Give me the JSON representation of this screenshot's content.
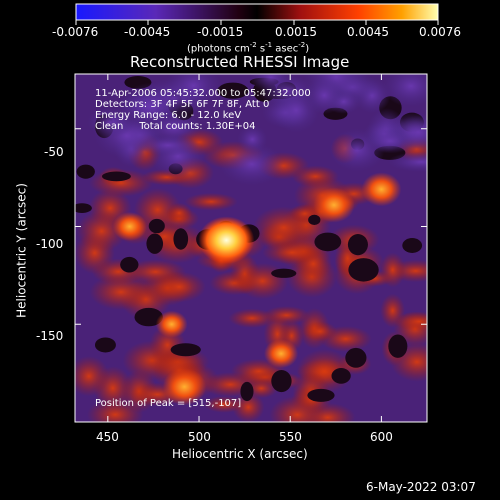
{
  "colorbar": {
    "ticks": [
      "-0.0076",
      "-0.0045",
      "-0.0015",
      "0.0015",
      "0.0045",
      "0.0076"
    ],
    "units_line1": "(photons cm",
    "units_sup1": "-2",
    "units_mid": " s",
    "units_sup2": "-1",
    "units_line2": " asec",
    "units_sup3": "-2",
    "units_end": ")"
  },
  "title": "Reconstructed RHESSI Image",
  "annotations": {
    "time": "11-Apr-2006 05:45:32.000 to 05:47:32.000",
    "detectors": "Detectors: 3F 4F 5F 6F 7F 8F, Att 0",
    "energy": "Energy Range: 6.0 - 12.0 keV",
    "clean": "Clean     Total counts: 1.30E+04",
    "peak": "Position of Peak = [515,-107]"
  },
  "axes": {
    "xlabel": "Heliocentric X (arcsec)",
    "ylabel": "Heliocentric Y (arcsec)",
    "xticks": [
      "450",
      "500",
      "550",
      "600"
    ],
    "yticks": [
      "-50",
      "-100",
      "-150"
    ]
  },
  "footer": {
    "date": "6-May-2022 03:07"
  },
  "colors": {
    "background": "#000000",
    "purple": "#5a2a9a",
    "red": "#d83a10",
    "bright": "#ffffa0"
  },
  "chart_data": {
    "type": "heatmap",
    "title": "Reconstructed RHESSI Image",
    "xlabel": "Heliocentric X (arcsec)",
    "ylabel": "Heliocentric Y (arcsec)",
    "xlim": [
      432,
      625
    ],
    "ylim": [
      -200,
      -22
    ],
    "colorscale_range": [
      -0.0076,
      0.0076
    ],
    "peak": {
      "x": 515,
      "y": -107
    },
    "hot_spots": [
      {
        "x": 515,
        "y": -107,
        "value": 0.0076
      },
      {
        "x": 574,
        "y": -89,
        "value": 0.0045
      },
      {
        "x": 600,
        "y": -81,
        "value": 0.0042
      },
      {
        "x": 492,
        "y": -182,
        "value": 0.005
      },
      {
        "x": 462,
        "y": -100,
        "value": 0.003
      },
      {
        "x": 545,
        "y": -165,
        "value": 0.003
      },
      {
        "x": 485,
        "y": -150,
        "value": 0.0025
      }
    ]
  }
}
